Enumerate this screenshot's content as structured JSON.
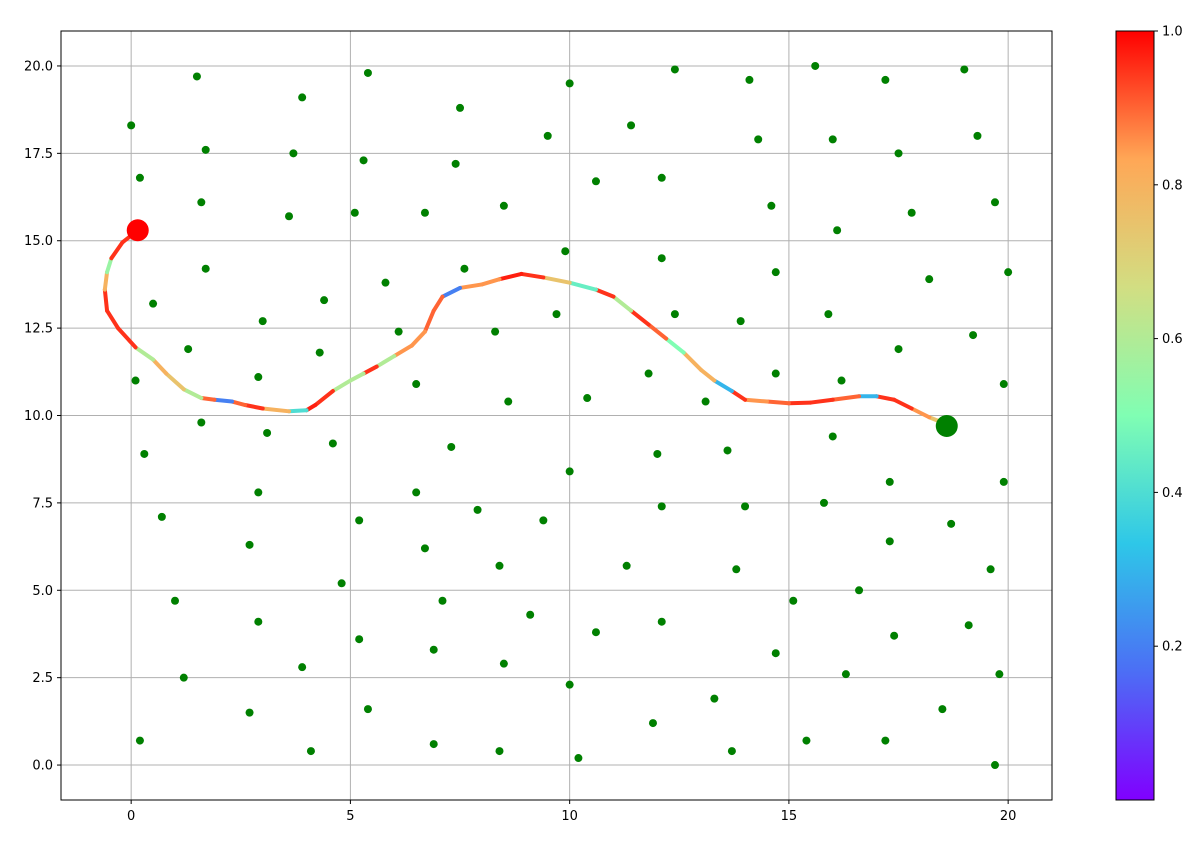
{
  "chart_data": {
    "type": "scatter",
    "title": "",
    "xlabel": "",
    "ylabel": "",
    "xlim": [
      -1.6,
      21.0
    ],
    "ylim": [
      -1.0,
      21.0
    ],
    "grid": true,
    "x_ticks": [
      0,
      5,
      10,
      15,
      20
    ],
    "x_tick_labels": [
      "0",
      "5",
      "10",
      "15",
      "20"
    ],
    "y_ticks": [
      0.0,
      2.5,
      5.0,
      7.5,
      10.0,
      12.5,
      15.0,
      17.5,
      20.0
    ],
    "y_tick_labels": [
      "0.0",
      "2.5",
      "5.0",
      "7.5",
      "10.0",
      "12.5",
      "15.0",
      "17.5",
      "20.0"
    ],
    "point_color": "#008000",
    "start_marker": {
      "x": 18.6,
      "y": 9.7,
      "color": "#008000"
    },
    "goal_marker": {
      "x": 0.15,
      "y": 15.3,
      "color": "#ff0000"
    },
    "colorbar": {
      "colormap": "rainbow",
      "range": [
        0.0,
        1.0
      ],
      "ticks": [
        0.2,
        0.4,
        0.6,
        0.8,
        1.0
      ],
      "tick_labels": [
        "0.2",
        "0.4",
        "0.6",
        "0.8",
        "1.0"
      ],
      "colors": [
        "#8000ff",
        "#4c6ef5",
        "#2ec7e8",
        "#80feb3",
        "#d2de82",
        "#ffa756",
        "#ff0000"
      ]
    },
    "obstacles": [
      [
        0.2,
        0.7
      ],
      [
        1.2,
        2.5
      ],
      [
        1.0,
        4.7
      ],
      [
        0.7,
        7.1
      ],
      [
        0.3,
        8.9
      ],
      [
        0.1,
        11.0
      ],
      [
        0.5,
        13.2
      ],
      [
        0.2,
        16.8
      ],
      [
        0.0,
        18.3
      ],
      [
        1.6,
        9.8
      ],
      [
        1.3,
        11.9
      ],
      [
        1.7,
        14.2
      ],
      [
        1.6,
        16.1
      ],
      [
        1.7,
        17.6
      ],
      [
        1.5,
        19.7
      ],
      [
        2.7,
        1.5
      ],
      [
        2.9,
        4.1
      ],
      [
        2.7,
        6.3
      ],
      [
        2.9,
        7.8
      ],
      [
        3.1,
        9.5
      ],
      [
        2.9,
        11.1
      ],
      [
        3.0,
        12.7
      ],
      [
        3.6,
        15.7
      ],
      [
        3.7,
        17.5
      ],
      [
        3.9,
        19.1
      ],
      [
        4.1,
        0.4
      ],
      [
        3.9,
        2.8
      ],
      [
        4.8,
        5.2
      ],
      [
        4.6,
        9.2
      ],
      [
        4.3,
        11.8
      ],
      [
        4.4,
        13.3
      ],
      [
        5.1,
        15.8
      ],
      [
        5.3,
        17.3
      ],
      [
        5.4,
        19.8
      ],
      [
        5.4,
        1.6
      ],
      [
        5.2,
        3.6
      ],
      [
        5.2,
        7.0
      ],
      [
        5.8,
        13.8
      ],
      [
        6.1,
        12.4
      ],
      [
        6.5,
        10.9
      ],
      [
        6.5,
        7.8
      ],
      [
        6.7,
        6.2
      ],
      [
        6.7,
        15.8
      ],
      [
        6.9,
        0.6
      ],
      [
        6.9,
        3.3
      ],
      [
        7.1,
        4.7
      ],
      [
        7.3,
        9.1
      ],
      [
        7.6,
        14.2
      ],
      [
        7.4,
        17.2
      ],
      [
        7.5,
        18.8
      ],
      [
        7.9,
        7.3
      ],
      [
        8.4,
        0.4
      ],
      [
        8.5,
        2.9
      ],
      [
        8.4,
        5.7
      ],
      [
        8.6,
        10.4
      ],
      [
        8.3,
        12.4
      ],
      [
        8.5,
        16.0
      ],
      [
        9.1,
        4.3
      ],
      [
        9.4,
        7.0
      ],
      [
        9.7,
        12.9
      ],
      [
        9.5,
        18.0
      ],
      [
        10.2,
        0.2
      ],
      [
        10.0,
        2.3
      ],
      [
        10.0,
        8.4
      ],
      [
        10.4,
        10.5
      ],
      [
        9.9,
        14.7
      ],
      [
        10.0,
        19.5
      ],
      [
        10.6,
        3.8
      ],
      [
        10.6,
        16.7
      ],
      [
        11.3,
        5.7
      ],
      [
        11.4,
        18.3
      ],
      [
        11.9,
        1.2
      ],
      [
        12.1,
        4.1
      ],
      [
        12.1,
        7.4
      ],
      [
        12.0,
        8.9
      ],
      [
        11.8,
        11.2
      ],
      [
        12.4,
        12.9
      ],
      [
        12.1,
        14.5
      ],
      [
        12.1,
        16.8
      ],
      [
        12.4,
        19.9
      ],
      [
        13.1,
        10.4
      ],
      [
        13.3,
        1.9
      ],
      [
        13.7,
        0.4
      ],
      [
        13.8,
        5.6
      ],
      [
        14.0,
        7.4
      ],
      [
        13.6,
        9.0
      ],
      [
        13.9,
        12.7
      ],
      [
        14.1,
        19.6
      ],
      [
        14.3,
        17.9
      ],
      [
        14.6,
        16.0
      ],
      [
        14.7,
        14.1
      ],
      [
        14.7,
        3.2
      ],
      [
        14.7,
        11.2
      ],
      [
        15.1,
        4.7
      ],
      [
        15.4,
        0.7
      ],
      [
        15.8,
        7.5
      ],
      [
        15.9,
        12.9
      ],
      [
        16.1,
        15.3
      ],
      [
        16.0,
        17.9
      ],
      [
        15.6,
        20.0
      ],
      [
        16.3,
        2.6
      ],
      [
        16.6,
        5.0
      ],
      [
        16.0,
        9.4
      ],
      [
        16.2,
        11.0
      ],
      [
        17.2,
        0.7
      ],
      [
        17.4,
        3.7
      ],
      [
        17.3,
        6.4
      ],
      [
        17.3,
        8.1
      ],
      [
        17.5,
        11.9
      ],
      [
        17.5,
        17.5
      ],
      [
        17.2,
        19.6
      ],
      [
        17.8,
        15.8
      ],
      [
        18.2,
        13.9
      ],
      [
        18.5,
        1.6
      ],
      [
        18.7,
        6.9
      ],
      [
        19.1,
        4.0
      ],
      [
        19.2,
        12.3
      ],
      [
        19.3,
        18.0
      ],
      [
        19.0,
        19.9
      ],
      [
        19.7,
        0.0
      ],
      [
        19.8,
        2.6
      ],
      [
        19.6,
        5.6
      ],
      [
        19.9,
        8.1
      ],
      [
        19.9,
        10.9
      ],
      [
        20.0,
        14.1
      ],
      [
        19.7,
        16.1
      ]
    ],
    "path": [
      {
        "x": 18.6,
        "y": 9.75,
        "v": 0.75
      },
      {
        "x": 18.2,
        "y": 9.95,
        "v": 0.85
      },
      {
        "x": 17.8,
        "y": 10.2,
        "v": 0.95
      },
      {
        "x": 17.4,
        "y": 10.45,
        "v": 0.95
      },
      {
        "x": 17.0,
        "y": 10.55,
        "v": 0.3
      },
      {
        "x": 16.6,
        "y": 10.55,
        "v": 0.9
      },
      {
        "x": 16.0,
        "y": 10.45,
        "v": 0.95
      },
      {
        "x": 15.5,
        "y": 10.37,
        "v": 0.95
      },
      {
        "x": 15.0,
        "y": 10.35,
        "v": 0.9
      },
      {
        "x": 14.5,
        "y": 10.4,
        "v": 0.85
      },
      {
        "x": 14.0,
        "y": 10.45,
        "v": 0.95
      },
      {
        "x": 13.7,
        "y": 10.7,
        "v": 0.3
      },
      {
        "x": 13.3,
        "y": 11.0,
        "v": 0.8
      },
      {
        "x": 13.0,
        "y": 11.3,
        "v": 0.8
      },
      {
        "x": 12.6,
        "y": 11.8,
        "v": 0.5
      },
      {
        "x": 12.2,
        "y": 12.2,
        "v": 0.9
      },
      {
        "x": 11.8,
        "y": 12.6,
        "v": 0.95
      },
      {
        "x": 11.4,
        "y": 13.0,
        "v": 0.6
      },
      {
        "x": 11.0,
        "y": 13.4,
        "v": 0.95
      },
      {
        "x": 10.6,
        "y": 13.6,
        "v": 0.45
      },
      {
        "x": 10.0,
        "y": 13.8,
        "v": 0.75
      },
      {
        "x": 9.4,
        "y": 13.95,
        "v": 0.95
      },
      {
        "x": 8.9,
        "y": 14.05,
        "v": 0.97
      },
      {
        "x": 8.4,
        "y": 13.9,
        "v": 0.85
      },
      {
        "x": 8.0,
        "y": 13.75,
        "v": 0.85
      },
      {
        "x": 7.5,
        "y": 13.65,
        "v": 0.2
      },
      {
        "x": 7.1,
        "y": 13.4,
        "v": 0.9
      },
      {
        "x": 6.9,
        "y": 13.0,
        "v": 0.9
      },
      {
        "x": 6.7,
        "y": 12.4,
        "v": 0.85
      },
      {
        "x": 6.4,
        "y": 12.0,
        "v": 0.85
      },
      {
        "x": 6.0,
        "y": 11.7,
        "v": 0.6
      },
      {
        "x": 5.6,
        "y": 11.4,
        "v": 0.95
      },
      {
        "x": 5.3,
        "y": 11.2,
        "v": 0.6
      },
      {
        "x": 5.0,
        "y": 11.0,
        "v": 0.6
      },
      {
        "x": 4.6,
        "y": 10.7,
        "v": 0.95
      },
      {
        "x": 4.2,
        "y": 10.3,
        "v": 0.97
      },
      {
        "x": 4.0,
        "y": 10.15,
        "v": 0.4
      },
      {
        "x": 3.6,
        "y": 10.12,
        "v": 0.8
      },
      {
        "x": 3.0,
        "y": 10.2,
        "v": 0.95
      },
      {
        "x": 2.6,
        "y": 10.3,
        "v": 0.9
      },
      {
        "x": 2.3,
        "y": 10.4,
        "v": 0.2
      },
      {
        "x": 1.9,
        "y": 10.45,
        "v": 0.9
      },
      {
        "x": 1.6,
        "y": 10.5,
        "v": 0.6
      },
      {
        "x": 1.2,
        "y": 10.75,
        "v": 0.75
      },
      {
        "x": 0.8,
        "y": 11.2,
        "v": 0.8
      },
      {
        "x": 0.5,
        "y": 11.6,
        "v": 0.6
      },
      {
        "x": 0.1,
        "y": 11.95,
        "v": 0.95
      },
      {
        "x": -0.3,
        "y": 12.5,
        "v": 0.95
      },
      {
        "x": -0.55,
        "y": 13.0,
        "v": 0.95
      },
      {
        "x": -0.6,
        "y": 13.6,
        "v": 0.8
      },
      {
        "x": -0.55,
        "y": 14.1,
        "v": 0.55
      },
      {
        "x": -0.45,
        "y": 14.5,
        "v": 0.95
      },
      {
        "x": -0.2,
        "y": 14.95,
        "v": 0.95
      },
      {
        "x": 0.15,
        "y": 15.3,
        "v": 0.95
      }
    ]
  }
}
